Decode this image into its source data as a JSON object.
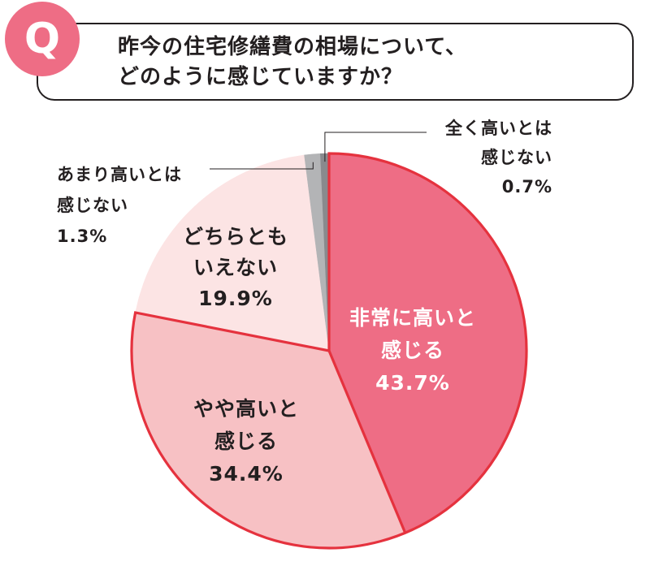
{
  "question": {
    "badge": "Q",
    "line1": "昨今の住宅修繕費の相場について、",
    "line2": "どのように感じていますか？"
  },
  "chart_data": {
    "type": "pie",
    "start": "top",
    "direction": "clockwise",
    "slices": [
      {
        "label_lines": [
          "非常に高いと",
          "感じる"
        ],
        "value": 43.7,
        "value_label": "43.7%",
        "color": "#ee6d85"
      },
      {
        "label_lines": [
          "やや高いと",
          "感じる"
        ],
        "value": 34.4,
        "value_label": "34.4%",
        "color": "#f7c1c4"
      },
      {
        "label_lines": [
          "どちらとも",
          "いえない"
        ],
        "value": 19.9,
        "value_label": "19.9%",
        "color": "#fce4e4"
      },
      {
        "label_lines": [
          "あまり高いとは",
          "感じない"
        ],
        "value": 1.3,
        "value_label": "1.3%",
        "color": "#b3b4b6"
      },
      {
        "label_lines": [
          "全く高いとは",
          "感じない"
        ],
        "value": 0.7,
        "value_label": "0.7%",
        "color": "#898a8d"
      }
    ],
    "outline_color": "#e5323e"
  }
}
